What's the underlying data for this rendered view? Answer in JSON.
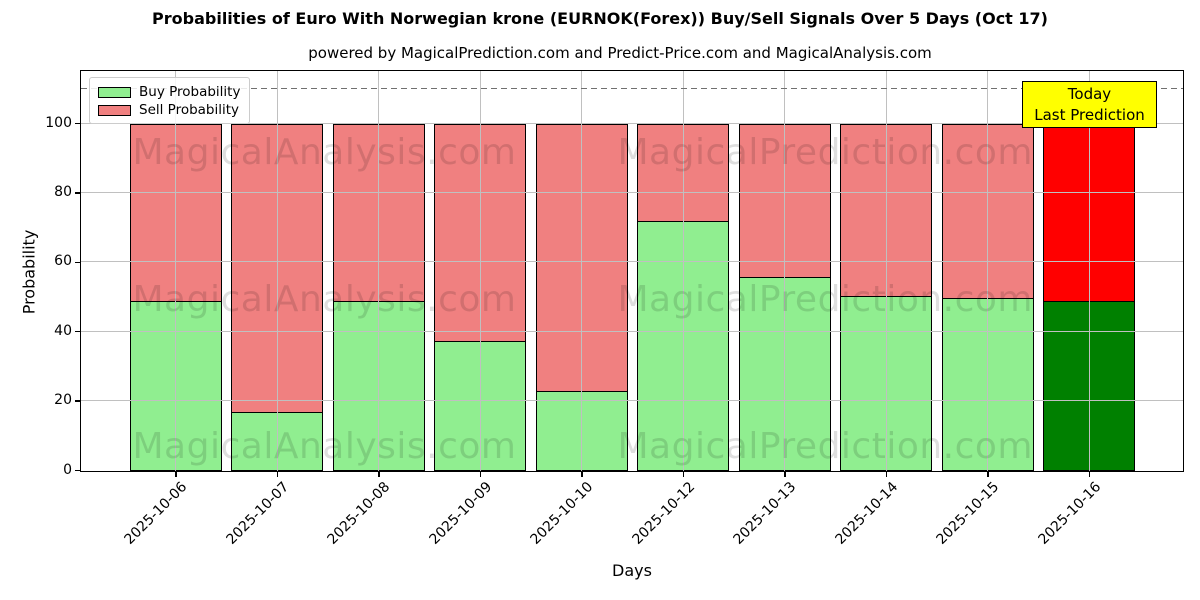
{
  "title": "Probabilities of Euro With Norwegian krone (EURNOK(Forex)) Buy/Sell Signals Over 5 Days (Oct 17)",
  "subtitle": "powered by MagicalPrediction.com and Predict-Price.com and MagicalAnalysis.com",
  "legend": {
    "items": [
      {
        "label": "Buy Probability",
        "color": "#90ee90"
      },
      {
        "label": "Sell Probability",
        "color": "#f08080"
      }
    ]
  },
  "annotation_box": {
    "line1": "Today",
    "line2": "Last Prediction",
    "bg": "#ffff00"
  },
  "watermark": {
    "left": "MagicalAnalysis.com",
    "right": "MagicalPrediction.com"
  },
  "axes": {
    "xlabel": "Days",
    "ylabel": "Probability",
    "yticks": [
      0,
      20,
      40,
      60,
      80,
      100
    ],
    "ylim": [
      0,
      115
    ],
    "dashed_line_y": 110,
    "grid": true
  },
  "colors": {
    "buy": "#90ee90",
    "sell": "#f08080",
    "today_buy": "#008000",
    "today_sell": "#ff0000",
    "bar_edge": "#000000",
    "grid": "#c0c0c0",
    "dashed_line": "#707070",
    "annotation_bg": "#ffff00"
  },
  "chart_data": {
    "type": "bar",
    "stacked": true,
    "title": "Probabilities of Euro With Norwegian krone (EURNOK(Forex)) Buy/Sell Signals Over 5 Days (Oct 17)",
    "xlabel": "Days",
    "ylabel": "Probability",
    "ylim": [
      0,
      115
    ],
    "grid": true,
    "legend_position": "upper left",
    "categories": [
      "2025-10-06",
      "2025-10-07",
      "2025-10-08",
      "2025-10-09",
      "2025-10-10",
      "2025-10-12",
      "2025-10-13",
      "2025-10-14",
      "2025-10-15",
      "2025-10-16"
    ],
    "series": [
      {
        "name": "Buy Probability",
        "values": [
          49,
          17,
          49,
          37.5,
          23,
          72,
          56,
          50.5,
          50,
          49
        ]
      },
      {
        "name": "Sell Probability",
        "values": [
          51,
          83,
          51,
          62.5,
          77,
          28,
          44,
          49.5,
          50,
          51
        ]
      }
    ],
    "today_index": 9,
    "annotations": [
      {
        "text": "Today Last Prediction",
        "y": 110,
        "style": "dashed-horizontal-line"
      }
    ]
  }
}
